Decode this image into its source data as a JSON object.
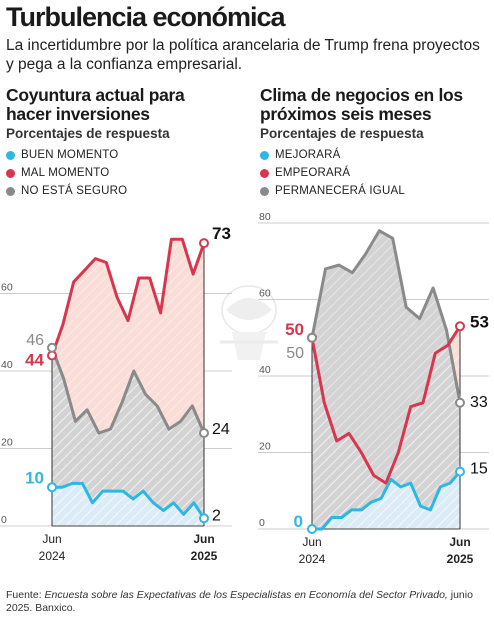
{
  "header": {
    "title": "Turbulencia económica",
    "subtitle": "La incertidumbre por la política arancelaria de Trump frena proyectos y pega a la confianza empresarial."
  },
  "footer": {
    "source_label": "Fuente: ",
    "source_name": "Encuesta sobre las Expectativas de los Especialistas en Economía del Sector Privado,",
    "source_rest": " junio 2025. Banxico."
  },
  "colors": {
    "blue": "#2fb7e3",
    "red": "#d8364f",
    "gray": "#8a8a8a",
    "blue_fill": "#dcecf7",
    "red_fill": "#f9ddd6",
    "gray_fill": "#d3d3d3"
  },
  "chart_data": [
    {
      "type": "line",
      "title": "Coyuntura actual para hacer inversiones",
      "subtitle": "Porcentajes de respuesta",
      "ylim": [
        0,
        80
      ],
      "y_ticks": [
        "0",
        "20",
        "40",
        "60"
      ],
      "x_labels": [
        {
          "line1": "Jun",
          "line2": "2024"
        },
        {
          "line1": "Jun",
          "line2": "2025"
        }
      ],
      "series": [
        {
          "name": "BUEN MOMENTO",
          "color_key": "blue",
          "values": [
            10,
            10,
            11,
            11,
            6,
            9,
            9,
            9,
            7,
            9,
            6,
            4,
            6,
            3,
            6,
            2
          ],
          "start_label": "10",
          "end_label": "2"
        },
        {
          "name": "MAL MOMENTO",
          "color_key": "red",
          "values": [
            44,
            52,
            63,
            66,
            69,
            68,
            59,
            53,
            64,
            64,
            55,
            74,
            74,
            65,
            73
          ],
          "start_label": "44",
          "end_label": "73"
        },
        {
          "name": "NO ESTÁ SEGURO",
          "color_key": "gray",
          "values": [
            46,
            38,
            27,
            30,
            24,
            25,
            32,
            40,
            34,
            31,
            25,
            27,
            31,
            24
          ],
          "start_label": "46",
          "end_label": "24"
        }
      ]
    },
    {
      "type": "line",
      "title": "Clima de negocios en los próximos seis meses",
      "subtitle": "Porcentajes de respuesta",
      "ylim": [
        0,
        80
      ],
      "y_ticks": [
        "0",
        "20",
        "40",
        "60",
        "80"
      ],
      "x_labels": [
        {
          "line1": "Jun",
          "line2": "2024"
        },
        {
          "line1": "Jun",
          "line2": "2025"
        }
      ],
      "series": [
        {
          "name": "MEJORARÁ",
          "color_key": "blue",
          "values": [
            0,
            0,
            3,
            3,
            5,
            5,
            7,
            8,
            13,
            11,
            12,
            6,
            5,
            11,
            12,
            15
          ],
          "start_label": "0",
          "end_label": "15"
        },
        {
          "name": "EMPEORARÁ",
          "color_key": "red",
          "values": [
            50,
            33,
            23,
            25,
            20,
            14,
            12,
            20,
            32,
            33,
            46,
            48,
            53
          ],
          "start_label": "50",
          "end_label": "53"
        },
        {
          "name": "PERMANECERÁ IGUAL",
          "color_key": "gray",
          "values": [
            50,
            68,
            69,
            67,
            72,
            78,
            76,
            58,
            55,
            63,
            52,
            33
          ],
          "start_label": "50",
          "end_label": "33"
        }
      ]
    }
  ]
}
